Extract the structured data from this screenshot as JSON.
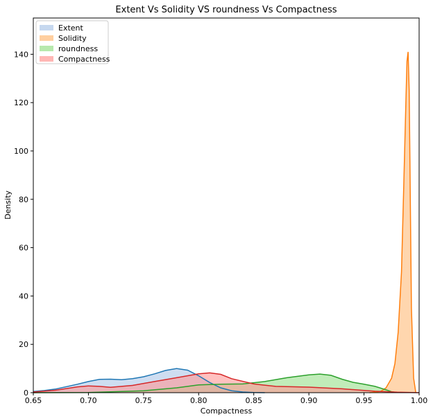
{
  "chart_data": {
    "type": "area",
    "title": "Extent Vs Solidity VS roundness Vs Compactness",
    "xlabel": "Compactness",
    "ylabel": "Density",
    "xlim": [
      0.65,
      1.0
    ],
    "ylim": [
      0,
      155
    ],
    "x_ticks": [
      "0.65",
      "0.70",
      "0.75",
      "0.80",
      "0.85",
      "0.90",
      "0.95",
      "1.00"
    ],
    "y_ticks": [
      "0",
      "20",
      "40",
      "60",
      "80",
      "100",
      "120",
      "140"
    ],
    "legend_position": "upper-left",
    "grid": false,
    "series": [
      {
        "name": "Extent",
        "color": "#1f77b4",
        "fill": "#aec7e8",
        "x": [
          0.65,
          0.66,
          0.67,
          0.68,
          0.69,
          0.7,
          0.71,
          0.72,
          0.73,
          0.74,
          0.75,
          0.76,
          0.77,
          0.78,
          0.79,
          0.8,
          0.81,
          0.82,
          0.83,
          0.84,
          0.85,
          0.86
        ],
        "y": [
          0.5,
          0.9,
          1.5,
          2.5,
          3.5,
          4.6,
          5.5,
          5.6,
          5.4,
          5.8,
          6.6,
          7.8,
          9.2,
          10.0,
          9.3,
          7.0,
          4.2,
          2.0,
          0.8,
          0.3,
          0.1,
          0.0
        ]
      },
      {
        "name": "Solidity",
        "color": "#ff7f0e",
        "fill": "#ffbb78",
        "x": [
          0.955,
          0.965,
          0.97,
          0.975,
          0.978,
          0.981,
          0.984,
          0.986,
          0.988,
          0.989,
          0.99,
          0.991,
          0.992,
          0.993,
          0.995,
          0.997
        ],
        "y": [
          0,
          0.5,
          2,
          6,
          12,
          25,
          50,
          85,
          120,
          137,
          141,
          125,
          80,
          35,
          6,
          0
        ]
      },
      {
        "name": "roundness",
        "color": "#2ca02c",
        "fill": "#98df8a",
        "x": [
          0.65,
          0.7,
          0.75,
          0.78,
          0.8,
          0.82,
          0.84,
          0.86,
          0.88,
          0.9,
          0.91,
          0.92,
          0.93,
          0.94,
          0.95,
          0.96,
          0.97,
          0.975,
          0.98
        ],
        "y": [
          0.0,
          0.1,
          0.8,
          2.0,
          3.2,
          3.5,
          3.6,
          4.6,
          6.2,
          7.4,
          7.7,
          7.2,
          5.6,
          4.3,
          3.5,
          2.6,
          1.2,
          0.4,
          0.1
        ]
      },
      {
        "name": "Compactness",
        "color": "#d62728",
        "fill": "#ff9896",
        "x": [
          0.65,
          0.67,
          0.69,
          0.7,
          0.71,
          0.72,
          0.74,
          0.76,
          0.78,
          0.8,
          0.81,
          0.82,
          0.83,
          0.85,
          0.87,
          0.9,
          0.93,
          0.96,
          0.98,
          1.0
        ],
        "y": [
          0.3,
          1.0,
          2.4,
          2.8,
          2.6,
          2.2,
          3.0,
          4.6,
          6.2,
          7.8,
          8.2,
          7.6,
          5.8,
          3.6,
          2.6,
          2.3,
          1.6,
          0.6,
          0.2,
          0.0
        ]
      }
    ]
  }
}
